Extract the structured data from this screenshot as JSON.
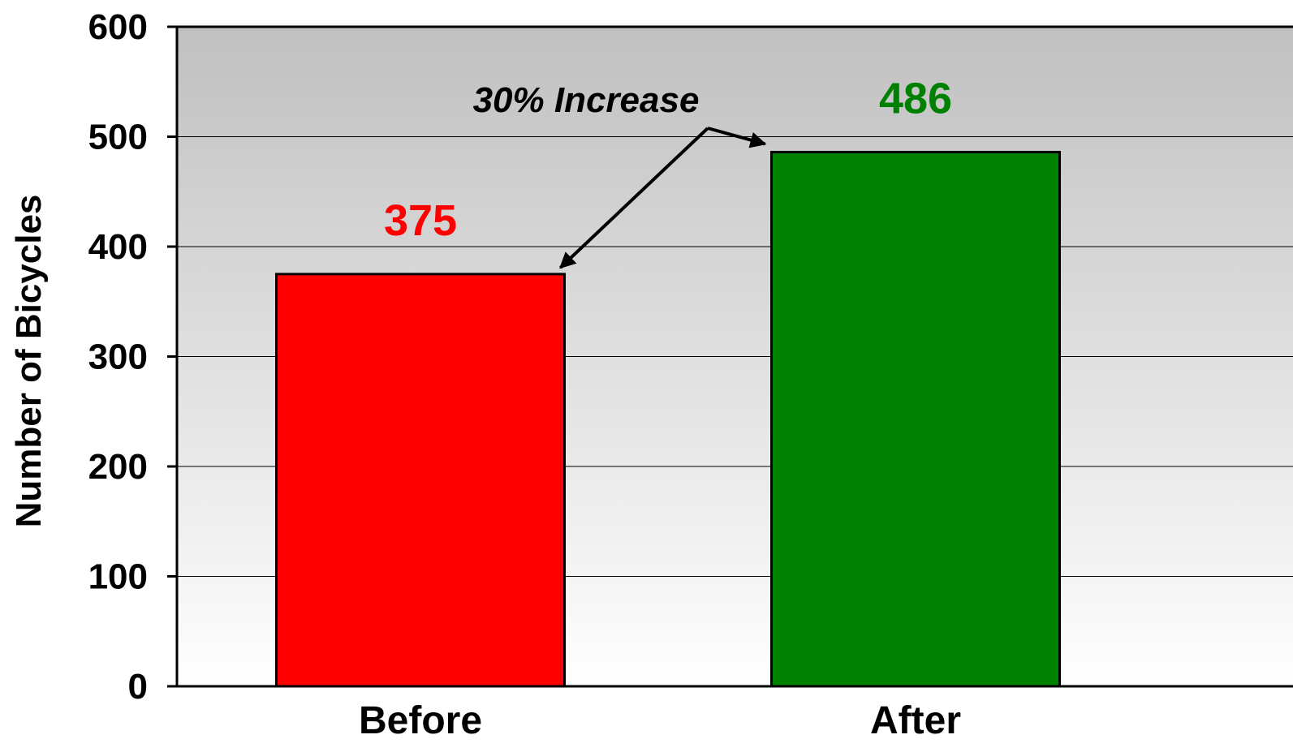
{
  "chart_data": {
    "type": "bar",
    "categories": [
      "Before",
      "After"
    ],
    "values": [
      375,
      486
    ],
    "value_labels": [
      "375",
      "486"
    ],
    "colors": [
      "#ff0000",
      "#008000"
    ],
    "label_colors": [
      "#ff0000",
      "#008000"
    ],
    "ylabel": "Number of Bicycles",
    "xlabel": "",
    "ylim": [
      0,
      600
    ],
    "yticks": [
      0,
      100,
      200,
      300,
      400,
      500,
      600
    ],
    "ytick_labels": [
      "0",
      "100",
      "200",
      "300",
      "400",
      "500",
      "600"
    ],
    "grid": true,
    "background": "gradient-gray",
    "annotation": {
      "text": "30% Increase",
      "arrows_to": [
        "Before",
        "After"
      ]
    }
  }
}
